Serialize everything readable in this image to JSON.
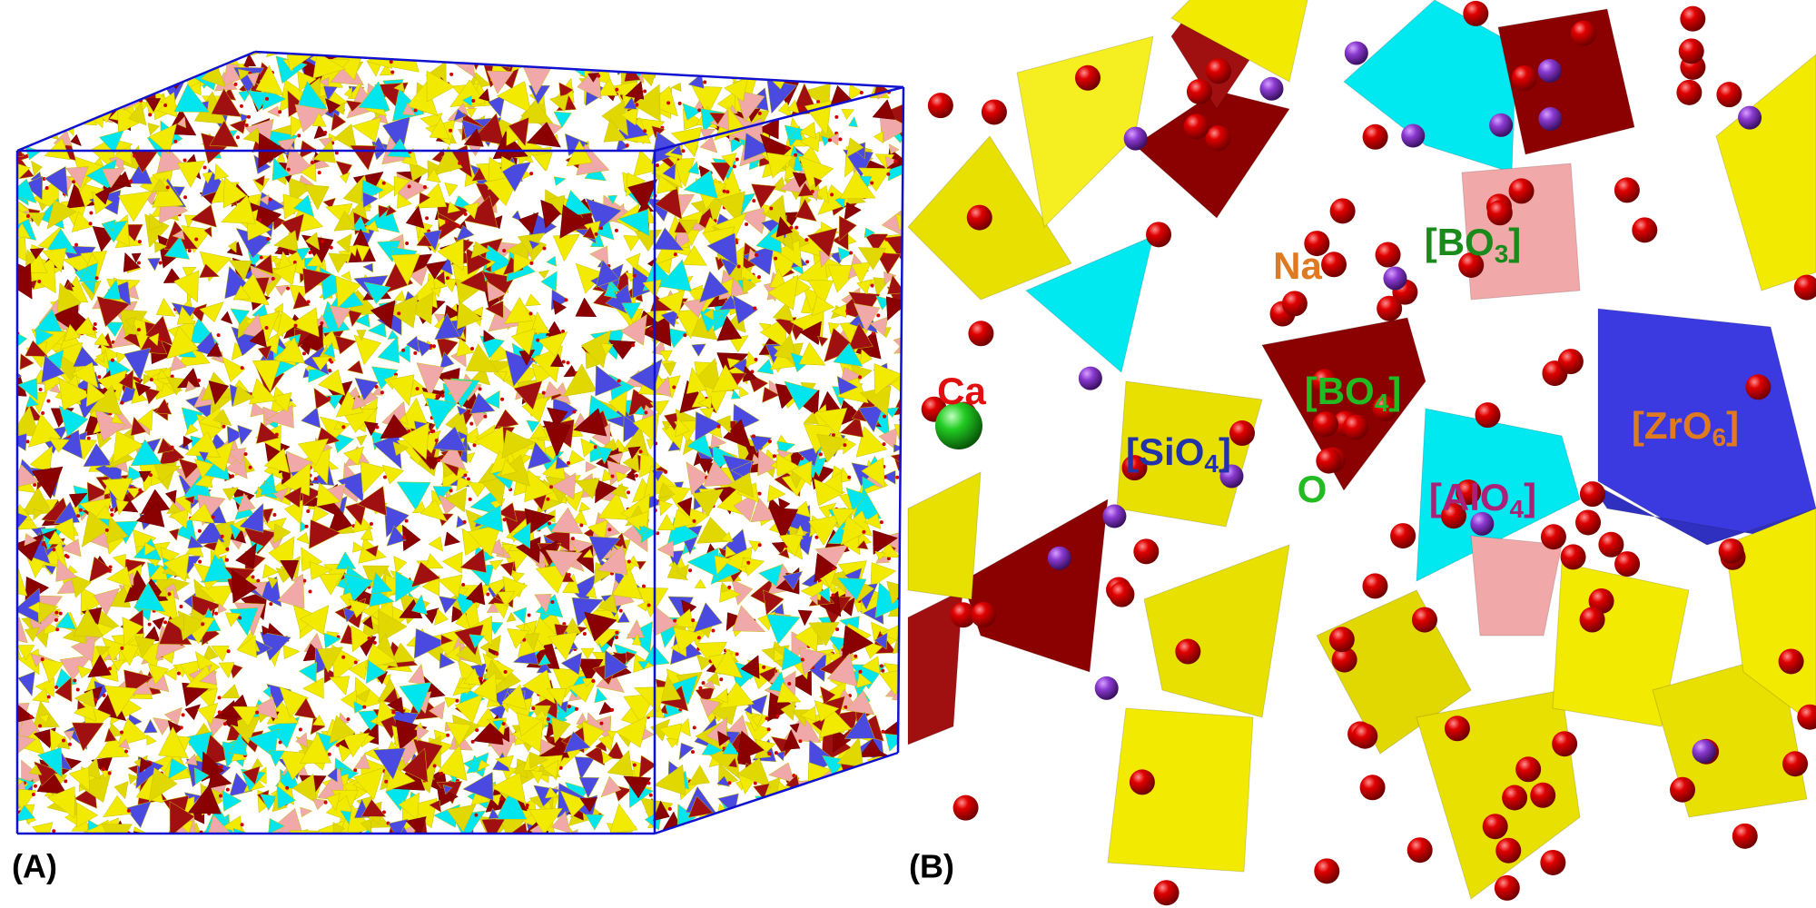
{
  "panels": [
    {
      "label": "(A)"
    },
    {
      "label": "(B)",
      "annotations": [
        {
          "text": "Na",
          "color": "#e07a20"
        },
        {
          "text": "Ca",
          "color": "#e01010"
        },
        {
          "text": "O",
          "color": "#22bb22"
        },
        {
          "text": "[BO",
          "sub": "3",
          "end": "]",
          "color": "#1a8a1a"
        },
        {
          "text": "[BO",
          "sub": "4",
          "end": "]",
          "color": "#22bb22"
        },
        {
          "text": "[SiO",
          "sub": "4",
          "end": "]",
          "color": "#2233aa"
        },
        {
          "text": "[AlO",
          "sub": "4",
          "end": "]",
          "color": "#aa2277"
        },
        {
          "text": "[ZrO",
          "sub": "6",
          "end": "]",
          "color": "#e07a20"
        }
      ]
    }
  ]
}
